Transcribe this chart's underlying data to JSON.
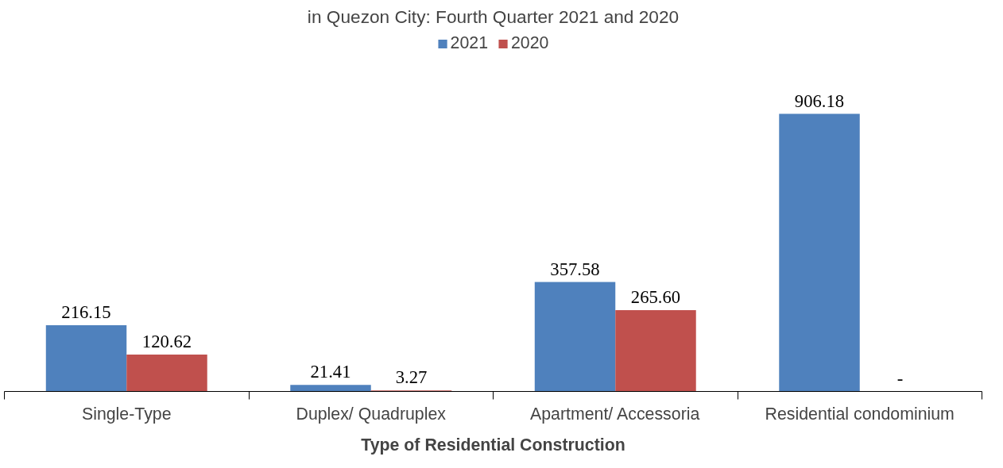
{
  "chart_data": {
    "type": "bar",
    "title": "in Quezon City: Fourth Quarter 2021 and 2020",
    "xlabel": "Type of Residential Construction",
    "categories": [
      "Single-Type",
      "Duplex/ Quadruplex",
      "Apartment/ Accessoria",
      "Residential condominium"
    ],
    "series": [
      {
        "name": "2021",
        "color": "#4f81bd",
        "values": [
          216.15,
          21.41,
          357.58,
          906.18
        ],
        "value_labels": [
          "216.15",
          "21.41",
          "357.58",
          "906.18"
        ]
      },
      {
        "name": "2020",
        "color": "#c0504d",
        "values": [
          120.62,
          3.27,
          265.6,
          null
        ],
        "value_labels": [
          "120.62",
          "3.27",
          "265.60",
          "-"
        ]
      }
    ],
    "legend": "top"
  }
}
